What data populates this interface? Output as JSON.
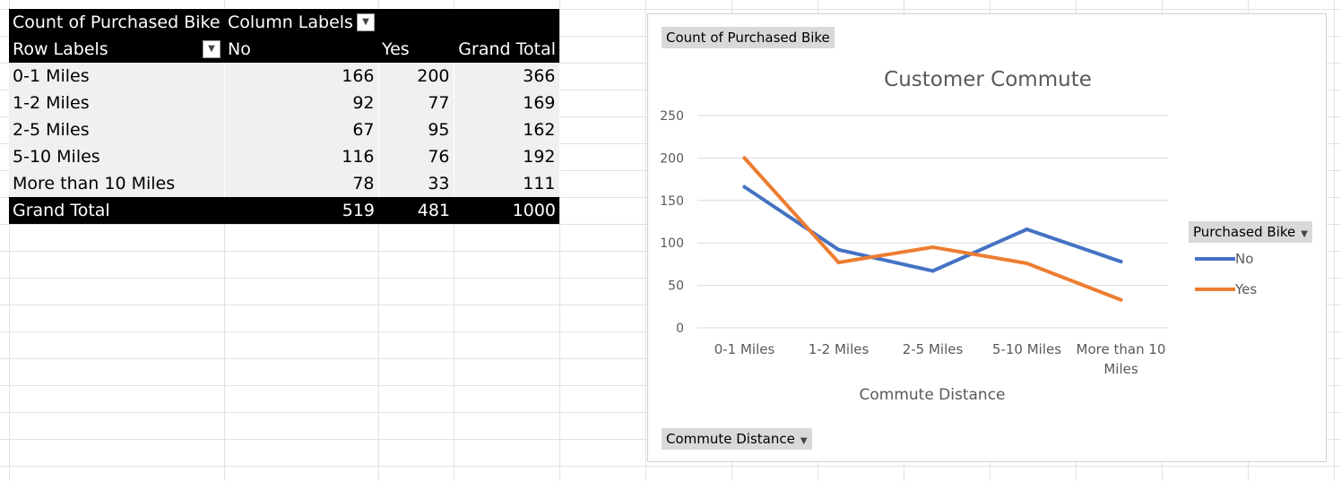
{
  "pivot": {
    "corner_label": "Count of Purchased Bike",
    "column_labels": "Column Labels",
    "row_labels": "Row Labels",
    "columns": [
      "No",
      "Yes",
      "Grand Total"
    ],
    "rows": [
      {
        "label": "0-1 Miles",
        "values": [
          "166",
          "200",
          "366"
        ]
      },
      {
        "label": "1-2 Miles",
        "values": [
          "92",
          "77",
          "169"
        ]
      },
      {
        "label": "2-5 Miles",
        "values": [
          "67",
          "95",
          "162"
        ]
      },
      {
        "label": "5-10 Miles",
        "values": [
          "116",
          "76",
          "192"
        ]
      },
      {
        "label": "More than 10 Miles",
        "values": [
          "78",
          "33",
          "111"
        ]
      }
    ],
    "total": {
      "label": "Grand Total",
      "values": [
        "519",
        "481",
        "1000"
      ]
    }
  },
  "chart_buttons": {
    "value_field": "Count of Purchased Bike",
    "legend_field": "Purchased Bike",
    "axis_field": "Commute Distance"
  },
  "chart_data": {
    "type": "line",
    "title": "Customer Commute",
    "xlabel": "Commute Distance",
    "ylabel": "",
    "categories": [
      "0-1 Miles",
      "1-2 Miles",
      "2-5 Miles",
      "5-10 Miles",
      "More than 10 Miles"
    ],
    "category_lines": [
      [
        "0-1 Miles"
      ],
      [
        "1-2 Miles"
      ],
      [
        "2-5 Miles"
      ],
      [
        "5-10 Miles"
      ],
      [
        "More than 10",
        "Miles"
      ]
    ],
    "ylim": [
      0,
      250
    ],
    "yticks": [
      0,
      50,
      100,
      150,
      200,
      250
    ],
    "grid": true,
    "legend_position": "right",
    "series": [
      {
        "name": "No",
        "color": "#4472c4",
        "values": [
          166,
          92,
          67,
          116,
          78
        ]
      },
      {
        "name": "Yes",
        "color": "#ed7d31",
        "values": [
          200,
          77,
          95,
          76,
          33
        ]
      }
    ]
  }
}
